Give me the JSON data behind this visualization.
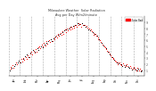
{
  "title": "Milwaukee Weather  Solar Radiation",
  "subtitle": "Avg per Day W/m2/minute",
  "background_color": "#ffffff",
  "plot_bg_color": "#ffffff",
  "grid_color": "#aaaaaa",
  "y_label_color": "#444444",
  "ylim": [
    0,
    10
  ],
  "yticks": [
    1,
    2,
    3,
    4,
    5,
    6,
    7,
    8,
    9
  ],
  "legend_label": "Solar Rad",
  "legend_color": "#ff0000",
  "red_series": [
    [
      2,
      1.2
    ],
    [
      3,
      1.5
    ],
    [
      5,
      1.8
    ],
    [
      6,
      1.4
    ],
    [
      8,
      2.0
    ],
    [
      10,
      2.3
    ],
    [
      11,
      1.9
    ],
    [
      13,
      2.5
    ],
    [
      15,
      2.2
    ],
    [
      17,
      2.8
    ],
    [
      18,
      2.4
    ],
    [
      20,
      3.0
    ],
    [
      21,
      2.7
    ],
    [
      23,
      3.2
    ],
    [
      24,
      2.9
    ],
    [
      26,
      3.5
    ],
    [
      28,
      3.1
    ],
    [
      29,
      3.8
    ],
    [
      31,
      4.0
    ],
    [
      32,
      3.6
    ],
    [
      34,
      4.2
    ],
    [
      35,
      3.9
    ],
    [
      37,
      4.5
    ],
    [
      38,
      4.1
    ],
    [
      40,
      4.8
    ],
    [
      42,
      5.0
    ],
    [
      43,
      4.6
    ],
    [
      45,
      5.2
    ],
    [
      47,
      4.9
    ],
    [
      48,
      5.5
    ],
    [
      50,
      5.1
    ],
    [
      52,
      5.8
    ],
    [
      53,
      5.4
    ],
    [
      55,
      6.0
    ],
    [
      56,
      5.7
    ],
    [
      58,
      6.2
    ],
    [
      60,
      5.9
    ],
    [
      62,
      6.5
    ],
    [
      63,
      6.1
    ],
    [
      65,
      6.8
    ],
    [
      66,
      6.4
    ],
    [
      68,
      7.0
    ],
    [
      69,
      6.7
    ],
    [
      71,
      7.2
    ],
    [
      72,
      6.9
    ],
    [
      74,
      7.5
    ],
    [
      75,
      7.1
    ],
    [
      77,
      7.8
    ],
    [
      78,
      7.4
    ],
    [
      80,
      7.9
    ],
    [
      81,
      7.6
    ],
    [
      83,
      8.1
    ],
    [
      84,
      7.8
    ],
    [
      86,
      8.3
    ],
    [
      87,
      8.0
    ],
    [
      89,
      8.4
    ],
    [
      90,
      8.1
    ],
    [
      92,
      8.6
    ],
    [
      93,
      8.2
    ],
    [
      95,
      8.8
    ],
    [
      96,
      8.5
    ],
    [
      98,
      8.7
    ],
    [
      99,
      8.3
    ],
    [
      101,
      8.9
    ],
    [
      102,
      8.5
    ],
    [
      104,
      8.6
    ],
    [
      105,
      8.2
    ],
    [
      107,
      8.4
    ],
    [
      108,
      8.1
    ],
    [
      110,
      7.9
    ],
    [
      111,
      7.6
    ],
    [
      113,
      7.8
    ],
    [
      114,
      7.5
    ],
    [
      116,
      7.2
    ],
    [
      117,
      6.9
    ],
    [
      119,
      7.1
    ],
    [
      120,
      6.8
    ],
    [
      122,
      6.5
    ],
    [
      123,
      6.2
    ],
    [
      125,
      6.0
    ],
    [
      126,
      5.7
    ],
    [
      128,
      5.5
    ],
    [
      129,
      5.2
    ],
    [
      131,
      5.0
    ],
    [
      132,
      4.8
    ],
    [
      134,
      4.5
    ],
    [
      135,
      4.2
    ],
    [
      137,
      4.0
    ],
    [
      138,
      3.7
    ],
    [
      140,
      3.5
    ],
    [
      141,
      3.2
    ],
    [
      143,
      3.0
    ],
    [
      144,
      2.8
    ],
    [
      146,
      2.6
    ],
    [
      147,
      2.4
    ],
    [
      149,
      2.2
    ],
    [
      150,
      2.0
    ],
    [
      152,
      2.3
    ],
    [
      153,
      2.0
    ],
    [
      155,
      1.8
    ],
    [
      157,
      2.1
    ],
    [
      158,
      1.8
    ],
    [
      160,
      1.6
    ],
    [
      162,
      1.9
    ],
    [
      163,
      1.6
    ],
    [
      165,
      1.4
    ],
    [
      167,
      1.7
    ],
    [
      168,
      1.4
    ],
    [
      170,
      1.2
    ],
    [
      172,
      1.5
    ],
    [
      173,
      1.2
    ],
    [
      175,
      1.0
    ],
    [
      177,
      1.3
    ],
    [
      179,
      0.9
    ],
    [
      180,
      1.2
    ],
    [
      182,
      1.0
    ]
  ],
  "black_series": [
    [
      1,
      1.0
    ],
    [
      4,
      1.3
    ],
    [
      7,
      1.6
    ],
    [
      9,
      1.9
    ],
    [
      12,
      2.2
    ],
    [
      14,
      2.6
    ],
    [
      16,
      2.3
    ],
    [
      19,
      2.9
    ],
    [
      22,
      3.3
    ],
    [
      25,
      3.6
    ],
    [
      27,
      3.2
    ],
    [
      30,
      3.9
    ],
    [
      33,
      4.3
    ],
    [
      36,
      4.0
    ],
    [
      39,
      4.6
    ],
    [
      41,
      4.4
    ],
    [
      44,
      5.0
    ],
    [
      46,
      4.8
    ],
    [
      49,
      5.3
    ],
    [
      51,
      5.6
    ],
    [
      54,
      5.8
    ],
    [
      57,
      6.1
    ],
    [
      59,
      5.8
    ],
    [
      61,
      6.3
    ],
    [
      64,
      6.6
    ],
    [
      67,
      6.9
    ],
    [
      70,
      7.1
    ],
    [
      73,
      7.4
    ],
    [
      76,
      7.7
    ],
    [
      79,
      7.8
    ],
    [
      82,
      8.0
    ],
    [
      85,
      8.3
    ],
    [
      88,
      8.4
    ],
    [
      91,
      8.6
    ],
    [
      94,
      8.8
    ],
    [
      97,
      8.7
    ],
    [
      100,
      8.9
    ],
    [
      103,
      8.6
    ],
    [
      106,
      8.3
    ],
    [
      109,
      7.8
    ],
    [
      112,
      7.6
    ],
    [
      115,
      7.3
    ],
    [
      118,
      7.0
    ],
    [
      121,
      6.7
    ],
    [
      124,
      6.1
    ],
    [
      127,
      5.6
    ],
    [
      130,
      5.1
    ],
    [
      133,
      4.6
    ],
    [
      136,
      4.1
    ],
    [
      139,
      3.6
    ],
    [
      142,
      3.1
    ],
    [
      145,
      2.7
    ],
    [
      148,
      2.3
    ],
    [
      151,
      2.1
    ],
    [
      154,
      1.9
    ],
    [
      156,
      1.7
    ],
    [
      159,
      1.5
    ],
    [
      161,
      1.8
    ],
    [
      164,
      1.5
    ],
    [
      166,
      1.3
    ],
    [
      169,
      1.1
    ],
    [
      171,
      1.4
    ],
    [
      174,
      1.1
    ],
    [
      176,
      0.9
    ],
    [
      178,
      1.2
    ],
    [
      181,
      0.8
    ],
    [
      183,
      1.0
    ]
  ],
  "vlines": [
    0,
    15,
    31,
    47,
    62,
    78,
    93,
    109,
    124,
    140,
    155,
    171,
    186
  ],
  "xlim": [
    0,
    186
  ],
  "xtick_positions": [
    7,
    23,
    39,
    54,
    70,
    85,
    101,
    116,
    132,
    147,
    163,
    178
  ],
  "xtick_labels": [
    "Jan",
    "Feb",
    "Mar",
    "Apr",
    "May",
    "Jun",
    "Jul",
    "Aug",
    "Sep",
    "Oct",
    "Nov",
    "Dec"
  ]
}
